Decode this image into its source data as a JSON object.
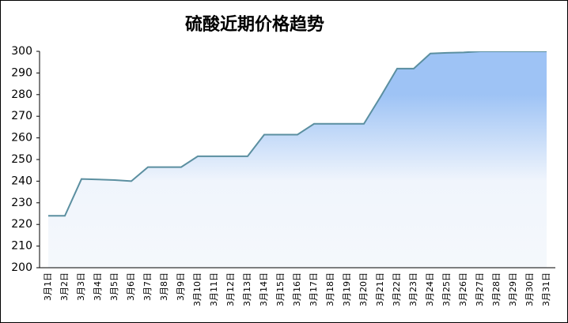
{
  "chart_data": {
    "type": "area",
    "title": "硫酸近期价格趋势",
    "categories": [
      "3月1日",
      "3月2日",
      "3月3日",
      "3月4日",
      "3月5日",
      "3月6日",
      "3月7日",
      "3月8日",
      "3月9日",
      "3月10日",
      "3月11日",
      "3月12日",
      "3月13日",
      "3月14日",
      "3月15日",
      "3月16日",
      "3月17日",
      "3月18日",
      "3月19日",
      "3月20日",
      "3月21日",
      "3月22日",
      "3月23日",
      "3月24日",
      "3月25日",
      "3月26日",
      "3月27日",
      "3月28日",
      "3月29日",
      "3月30日",
      "3月31日"
    ],
    "values": [
      224,
      224,
      241,
      240.8,
      240.5,
      240,
      246.5,
      246.5,
      246.5,
      251.5,
      251.5,
      251.5,
      251.5,
      261.5,
      261.5,
      261.5,
      266.5,
      266.5,
      266.5,
      266.5,
      279,
      292,
      292,
      299,
      299.3,
      299.5,
      300,
      300,
      300,
      300,
      300
    ],
    "color": "#5b8fa0",
    "fill_top": "#9ec3f5",
    "ylim": [
      200,
      300
    ],
    "yticks": [
      200,
      210,
      220,
      230,
      240,
      250,
      260,
      270,
      280,
      290,
      300
    ]
  }
}
